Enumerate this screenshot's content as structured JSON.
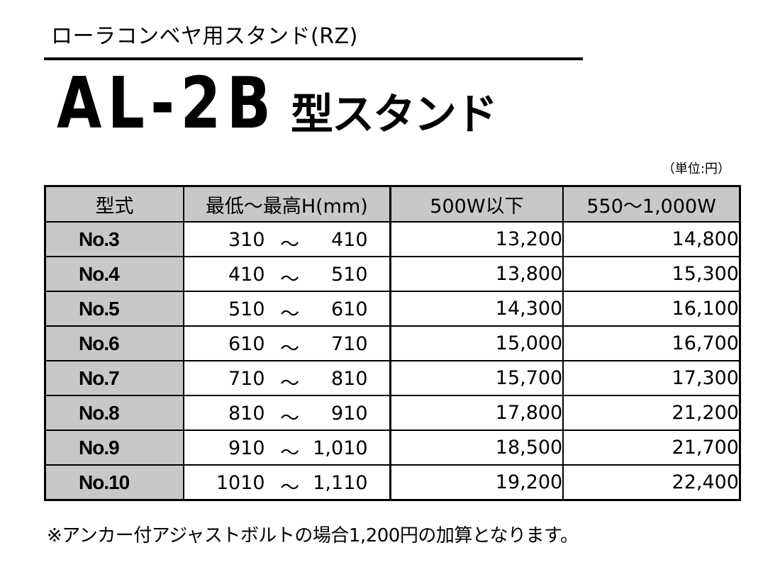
{
  "header": {
    "subtitle": "ローラコンベヤ用スタンド(RZ)",
    "model": "AL-2B",
    "model_suffix": "型スタンド",
    "unit_note": "（単位:円）"
  },
  "table": {
    "columns": [
      "型式",
      "最低～最高H(mm)",
      "500W以下",
      "550～1,000W"
    ],
    "rows": [
      {
        "model": "No.3",
        "min": "310",
        "tilde": "～",
        "max": "410",
        "price_500": "13,200",
        "price_1000": "14,800"
      },
      {
        "model": "No.4",
        "min": "410",
        "tilde": "～",
        "max": "510",
        "price_500": "13,800",
        "price_1000": "15,300"
      },
      {
        "model": "No.5",
        "min": "510",
        "tilde": "～",
        "max": "610",
        "price_500": "14,300",
        "price_1000": "16,100"
      },
      {
        "model": "No.6",
        "min": "610",
        "tilde": "～",
        "max": "710",
        "price_500": "15,000",
        "price_1000": "16,700"
      },
      {
        "model": "No.7",
        "min": "710",
        "tilde": "～",
        "max": "810",
        "price_500": "15,700",
        "price_1000": "17,300"
      },
      {
        "model": "No.8",
        "min": "810",
        "tilde": "～",
        "max": "910",
        "price_500": "17,800",
        "price_1000": "21,200"
      },
      {
        "model": "No.9",
        "min": "910",
        "tilde": "～",
        "max": "1,010",
        "price_500": "18,500",
        "price_1000": "21,700"
      },
      {
        "model": "No.10",
        "min": "1010",
        "tilde": "～",
        "max": "1,110",
        "price_500": "19,200",
        "price_1000": "22,400"
      }
    ]
  },
  "footer": {
    "note": "※アンカー付アジャストボルトの場合1,200円の加算となります。"
  },
  "colors": {
    "header_fill": "#c8c8c8",
    "text": "#000000",
    "background": "#ffffff"
  }
}
